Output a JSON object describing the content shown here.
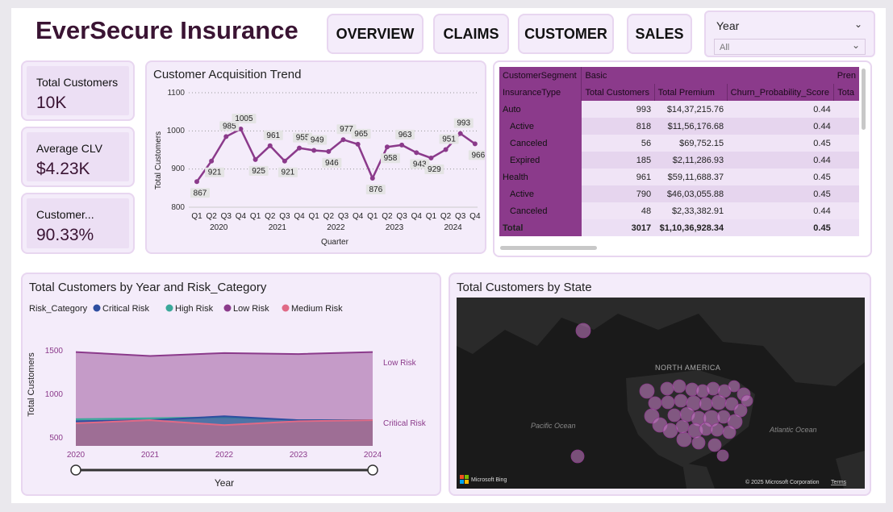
{
  "header": {
    "brand": "EverSecure Insurance"
  },
  "nav": [
    {
      "label": "OVERVIEW"
    },
    {
      "label": "CLAIMS"
    },
    {
      "label": "CUSTOMER"
    },
    {
      "label": "SALES"
    }
  ],
  "slicer": {
    "label": "Year",
    "value": "All"
  },
  "kpis": [
    {
      "label": "Total Customers",
      "value": "10K"
    },
    {
      "label": "Average CLV",
      "value": "$4.23K"
    },
    {
      "label": "Customer...",
      "value": "90.33%"
    }
  ],
  "acquisition": {
    "title": "Customer Acquisition Trend",
    "ylabel": "Total Customers",
    "xlabel": "Quarter",
    "yticks": [
      "1100",
      "1000",
      "900",
      "800"
    ],
    "quarters": [
      "Q1",
      "Q2",
      "Q3",
      "Q4",
      "Q1",
      "Q2",
      "Q3",
      "Q4",
      "Q1",
      "Q2",
      "Q3",
      "Q4",
      "Q1",
      "Q2",
      "Q3",
      "Q4",
      "Q1",
      "Q2",
      "Q3",
      "Q4"
    ],
    "years": [
      "2020",
      "2021",
      "2022",
      "2023",
      "2024"
    ]
  },
  "matrix": {
    "header1": [
      "CustomerSegment",
      "Basic",
      "Pren"
    ],
    "header2": [
      "InsuranceType",
      "Total Customers",
      "Total Premium",
      "Churn_Probability_Score",
      "Tota"
    ],
    "rows": [
      {
        "name": "Auto",
        "customers": "993",
        "premium": "$14,37,215.76",
        "churn": "0.44",
        "level": 0
      },
      {
        "name": "Active",
        "customers": "818",
        "premium": "$11,56,176.68",
        "churn": "0.44",
        "level": 1
      },
      {
        "name": "Canceled",
        "customers": "56",
        "premium": "$69,752.15",
        "churn": "0.45",
        "level": 1
      },
      {
        "name": "Expired",
        "customers": "185",
        "premium": "$2,11,286.93",
        "churn": "0.44",
        "level": 1
      },
      {
        "name": "Health",
        "customers": "961",
        "premium": "$59,11,688.37",
        "churn": "0.45",
        "level": 0
      },
      {
        "name": "Active",
        "customers": "790",
        "premium": "$46,03,055.88",
        "churn": "0.45",
        "level": 1
      },
      {
        "name": "Canceled",
        "customers": "48",
        "premium": "$2,33,382.91",
        "churn": "0.44",
        "level": 1
      }
    ],
    "total": {
      "name": "Total",
      "customers": "3017",
      "premium": "$1,10,36,928.34",
      "churn": "0.45"
    }
  },
  "risk": {
    "title": "Total Customers by Year and Risk_Category",
    "legend_title": "Risk_Category",
    "ylabel": "Total Customers",
    "xlabel": "Year",
    "yticks": [
      "1500",
      "1000",
      "500"
    ],
    "end_labels": [
      "Low Risk",
      "Critical Risk"
    ]
  },
  "map": {
    "title": "Total Customers by State",
    "labels": {
      "continent": "NORTH AMERICA",
      "pacific": "Pacific Ocean",
      "atlantic": "Atlantic Ocean"
    },
    "logo": "Microsoft Bing",
    "copyright": "© 2025 Microsoft Corporation",
    "terms": "Terms"
  },
  "colors": {
    "accent": "#8b3a8b",
    "header": "#8b3a8b",
    "card": "#f4ecfa",
    "border": "#e8d6f0",
    "map_bg": "#1a1a1a"
  },
  "chart_data": [
    {
      "type": "line",
      "title": "Customer Acquisition Trend",
      "xlabel": "Quarter",
      "ylabel": "Total Customers",
      "ylim": [
        800,
        1100
      ],
      "x": [
        "2020 Q1",
        "2020 Q2",
        "2020 Q3",
        "2020 Q4",
        "2021 Q1",
        "2021 Q2",
        "2021 Q3",
        "2021 Q4",
        "2022 Q1",
        "2022 Q2",
        "2022 Q3",
        "2022 Q4",
        "2023 Q1",
        "2023 Q2",
        "2023 Q3",
        "2023 Q4",
        "2024 Q1",
        "2024 Q2",
        "2024 Q3",
        "2024 Q4"
      ],
      "series": [
        {
          "values": [
            867,
            921,
            985,
            1005,
            925,
            961,
            921,
            955,
            949,
            946,
            977,
            965,
            876,
            958,
            963,
            943,
            929,
            951,
            993,
            966
          ]
        }
      ]
    },
    {
      "type": "area",
      "title": "Total Customers by Year and Risk_Category",
      "xlabel": "Year",
      "ylabel": "Total Customers",
      "x": [
        "2020",
        "2021",
        "2022",
        "2023",
        "2024"
      ],
      "ylim": [
        400,
        1600
      ],
      "series": [
        {
          "name": "Critical Risk",
          "color": "#2d4ea0",
          "values": [
            650,
            660,
            700,
            660,
            660
          ]
        },
        {
          "name": "High Risk",
          "color": "#3aa89a",
          "values": [
            670,
            680,
            690,
            660,
            660
          ]
        },
        {
          "name": "Low Risk",
          "color": "#8b3a8b",
          "values": [
            1350,
            1310,
            1340,
            1330,
            1350
          ]
        },
        {
          "name": "Medium Risk",
          "color": "#e06a86",
          "values": [
            630,
            660,
            610,
            650,
            660
          ]
        }
      ]
    }
  ]
}
